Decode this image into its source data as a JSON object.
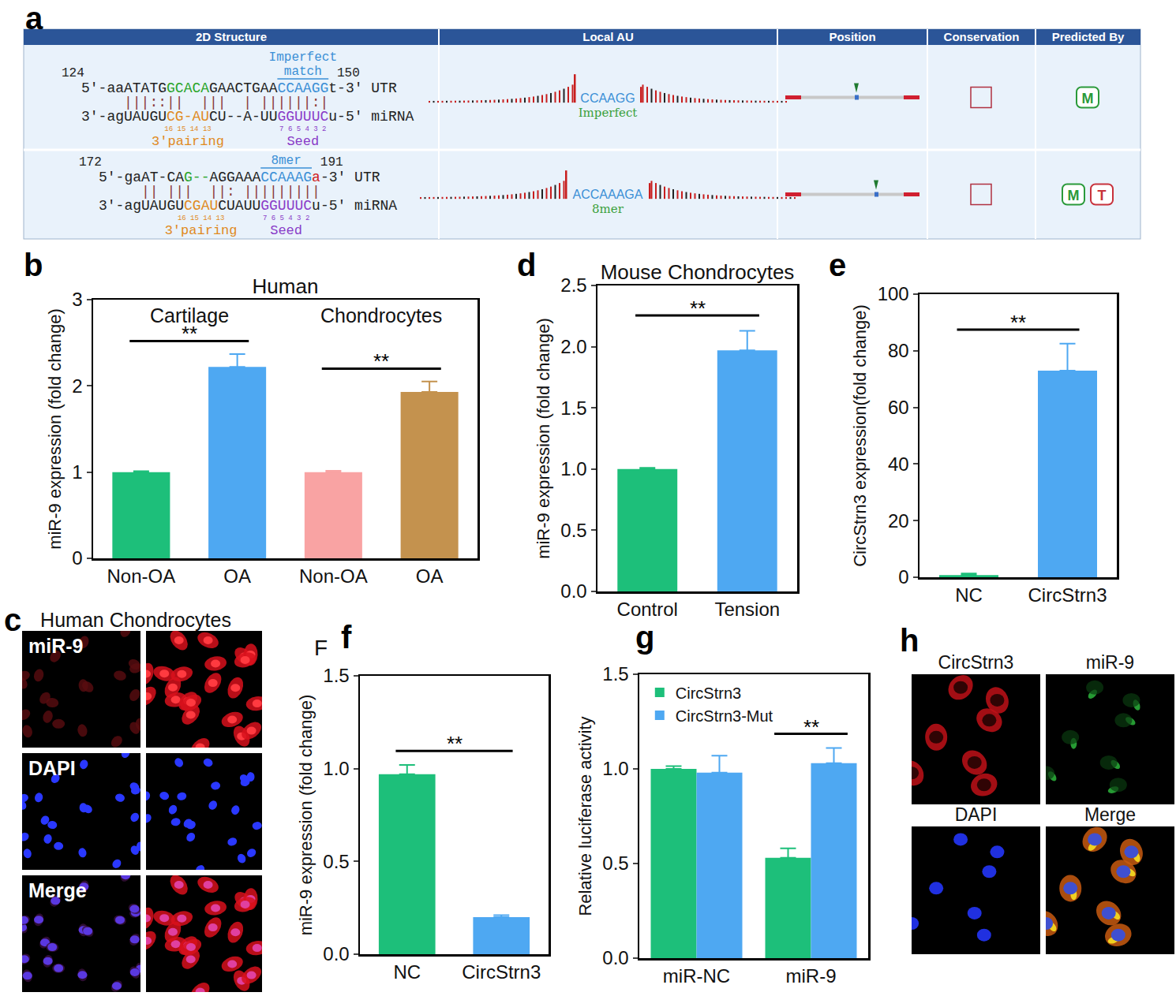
{
  "panel_labels": [
    "a",
    "b",
    "c",
    "d",
    "e",
    "f",
    "g",
    "h"
  ],
  "table": {
    "header": [
      "2D Structure",
      "Local AU",
      "Position",
      "Conservation",
      "Predicted By"
    ],
    "rows": [
      {
        "start": "124",
        "end": "150",
        "site_label": [
          "Imperfect",
          "match"
        ],
        "utr": [
          {
            "text": "5'-aaATATG",
            "color": "#222222"
          },
          {
            "text": "GCACA",
            "color": "#2aa52a"
          },
          {
            "text": "GAACTGAA",
            "color": "#222222"
          },
          {
            "text": "CCAAGG",
            "color": "#3a8fd6"
          },
          {
            "text": "t-3' UTR",
            "color": "#222222"
          }
        ],
        "pairing": "     |||::||  |||  | ||||||:|",
        "mirna": [
          {
            "text": "3'-agUAUGU",
            "color": "#222222"
          },
          {
            "text": "CG-AU",
            "color": "#e08a1e"
          },
          {
            "text": "CU--A-UU",
            "color": "#222222"
          },
          {
            "text": "GGUUUC",
            "color": "#8a3cc8"
          },
          {
            "text": "u-5' miRNA",
            "color": "#222222"
          }
        ],
        "pairing_numbers": "16 15 14 13",
        "seed_numbers": "7 6 5 4 3 2",
        "region_labels": [
          "3'pairing",
          "Seed"
        ],
        "au_site": "CCAAGG",
        "au_type": "Imperfect",
        "predicted_by": [
          {
            "text": "M",
            "color": "#2a9a3a"
          }
        ]
      },
      {
        "start": "172",
        "end": "191",
        "site_label": [
          "8mer"
        ],
        "utr": [
          {
            "text": "5'-gaAT-CA",
            "color": "#222222"
          },
          {
            "text": "G--",
            "color": "#2aa52a"
          },
          {
            "text": "AGGAAA",
            "color": "#222222"
          },
          {
            "text": "CCAAAG",
            "color": "#3a8fd6"
          },
          {
            "text": "a",
            "color": "#d02020"
          },
          {
            "text": "-3' UTR",
            "color": "#222222"
          }
        ],
        "pairing": "     || |||  ||: |||||||||",
        "mirna": [
          {
            "text": "3'-agUAUGU",
            "color": "#222222"
          },
          {
            "text": "CGAU",
            "color": "#e08a1e"
          },
          {
            "text": "CUAUU",
            "color": "#222222"
          },
          {
            "text": "GGUUUC",
            "color": "#8a3cc8"
          },
          {
            "text": "u-5' miRNA",
            "color": "#222222"
          }
        ],
        "pairing_numbers": "16 15 14 13",
        "seed_numbers": "7 6 5 4 3 2",
        "region_labels": [
          "3'pairing",
          "Seed"
        ],
        "au_site": "ACCAAAGA",
        "au_type": "8mer",
        "predicted_by": [
          {
            "text": "M",
            "color": "#2a9a3a"
          },
          {
            "text": "T",
            "color": "#c8323c"
          }
        ]
      }
    ]
  },
  "images": [
    {
      "title": "Human Chondrocytes",
      "labels": [
        "miR-9",
        "DAPI",
        "Merge"
      ]
    },
    {
      "labels": [
        "CircStrn3",
        "miR-9",
        "DAPI",
        "Merge"
      ]
    }
  ],
  "chart_data": [
    {
      "type": "bar",
      "title": "Human",
      "y_label": "miR-9 expression (fold change)",
      "categories": [
        "Non-OA",
        "OA",
        "Non-OA",
        "OA"
      ],
      "groups": [
        "Cartilage",
        "Chondrocytes"
      ],
      "values": [
        1.0,
        2.22,
        1.0,
        1.93
      ],
      "errors": [
        0.01,
        0.15,
        0.015,
        0.12
      ],
      "colors": [
        "#1dbf7a",
        "#4ea8f2",
        "#f9a3a3",
        "#c4924e"
      ],
      "ylim": [
        0,
        3
      ],
      "yticks": [
        0,
        1,
        2,
        3
      ],
      "significance": [
        {
          "pair": [
            0,
            1
          ],
          "label": "**"
        },
        {
          "pair": [
            2,
            3
          ],
          "label": "**"
        }
      ]
    },
    {
      "type": "bar",
      "title": "Mouse Chondrocytes",
      "y_label": "miR-9 expression (fold change)",
      "categories": [
        "Control",
        "Tension"
      ],
      "values": [
        1.0,
        1.97
      ],
      "errors": [
        0.01,
        0.16
      ],
      "colors": [
        "#1dbf7a",
        "#4ea8f2"
      ],
      "ylim": [
        0,
        2.5
      ],
      "yticks": [
        {
          "value": 0,
          "label": "0.0"
        },
        0.5,
        {
          "value": 1,
          "label": "1.0"
        },
        1.5,
        {
          "value": 2,
          "label": "2.0"
        },
        2.5
      ],
      "significance": [
        {
          "pair": [
            0,
            1
          ],
          "label": "**"
        }
      ]
    },
    {
      "type": "bar",
      "y_label": "CircStrn3 expression(fold change)",
      "categories": [
        "NC",
        "CircStrn3"
      ],
      "values": [
        0.8,
        73
      ],
      "errors": [
        0.5,
        9.5
      ],
      "colors": [
        "#1dbf7a",
        "#4ea8f2"
      ],
      "ylim": [
        0,
        100
      ],
      "yticks": [
        0,
        20,
        40,
        60,
        80,
        100
      ],
      "significance": [
        {
          "pair": [
            0,
            1
          ],
          "label": "**"
        }
      ]
    },
    {
      "type": "bar",
      "note": "F",
      "y_label": "miR-9 expression (fold change)",
      "categories": [
        "NC",
        "CircStrn3"
      ],
      "values": [
        0.97,
        0.2
      ],
      "errors": [
        0.05,
        0.01
      ],
      "colors": [
        "#1dbf7a",
        "#4ea8f2"
      ],
      "ylim": [
        0,
        1.5
      ],
      "yticks": [
        {
          "value": 0,
          "label": "0.0"
        },
        0.5,
        {
          "value": 1,
          "label": "1.0"
        },
        1.5
      ],
      "significance": [
        {
          "pair": [
            0,
            1
          ],
          "label": "**"
        }
      ]
    },
    {
      "type": "bar",
      "y_label": "Relative luciferase activity",
      "categories": [
        "miR-NC",
        "miR-9"
      ],
      "series": [
        {
          "name": "CircStrn3",
          "color": "#1dbf7a",
          "values": [
            1.0,
            0.53
          ],
          "errors": [
            0.015,
            0.05
          ]
        },
        {
          "name": "CircStrn3-Mut",
          "color": "#4ea8f2",
          "values": [
            0.98,
            1.03
          ],
          "errors": [
            0.09,
            0.08
          ]
        }
      ],
      "legend": "upper left",
      "ylim": [
        0,
        1.5
      ],
      "yticks": [
        {
          "value": 0,
          "label": "0.0"
        },
        0.5,
        {
          "value": 1,
          "label": "1.0"
        },
        1.5
      ],
      "significance": [
        {
          "category": 1,
          "pair": [
            0,
            1
          ],
          "label": "**"
        }
      ]
    }
  ]
}
